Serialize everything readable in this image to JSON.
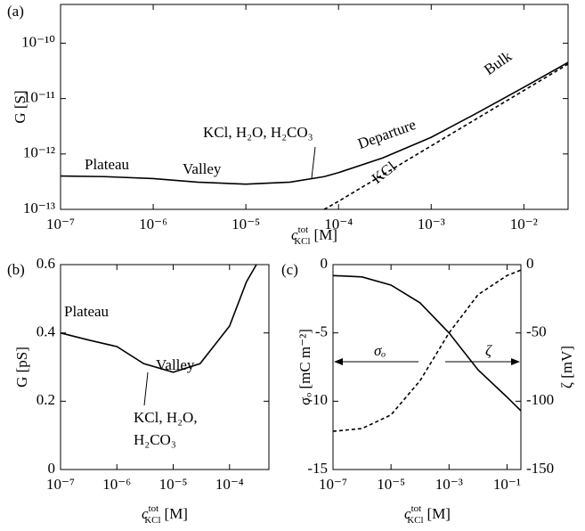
{
  "chart_data": [
    {
      "type": "line",
      "panel_label": "(a)",
      "xlabel": {
        "main": "c",
        "sup": "tot",
        "sub": "KCl",
        "unit": "[M]"
      },
      "ylabel": "G [S]",
      "xscale": "log",
      "yscale": "log",
      "x": [
        1e-07,
        3e-07,
        1e-06,
        3e-06,
        1e-05,
        3e-05,
        7e-05,
        0.0001,
        0.0003,
        0.001,
        0.003,
        0.01,
        0.03
      ],
      "series": [
        {
          "color": "#000000",
          "dash": "solid",
          "values": [
            4e-13,
            3.9e-13,
            3.6e-13,
            3.1e-13,
            2.85e-13,
            3.1e-13,
            3.9e-13,
            4.6e-13,
            8.5e-13,
            2e-12,
            5.3e-12,
            1.6e-11,
            4.5e-11
          ]
        },
        {
          "color": "#000000",
          "dash": "dashed",
          "values": [
            null,
            null,
            null,
            null,
            null,
            null,
            1e-13,
            1.4e-13,
            4.2e-13,
            1.4e-12,
            4.2e-12,
            1.4e-11,
            4.2e-11
          ]
        }
      ],
      "xlim": [
        1e-07,
        0.03
      ],
      "xticks": [
        {
          "value": 1e-07,
          "label": "10⁻⁷"
        },
        {
          "value": 1e-06,
          "label": "10⁻⁶"
        },
        {
          "value": 1e-05,
          "label": "10⁻⁵"
        },
        {
          "value": 0.0001,
          "label": "10⁻⁴"
        },
        {
          "value": 0.001,
          "label": "10⁻³"
        },
        {
          "value": 0.01,
          "label": "10⁻²"
        }
      ],
      "ylim": [
        1e-13,
        5e-10
      ],
      "yticks": [
        {
          "value": 1e-13,
          "label": "10⁻¹³"
        },
        {
          "value": 1e-12,
          "label": "10⁻¹²"
        },
        {
          "value": 1e-11,
          "label": "10⁻¹¹"
        },
        {
          "value": 1e-10,
          "label": "10⁻¹⁰"
        }
      ],
      "annotations": [
        "Plateau",
        "Valley",
        "KCl, H₂O, H₂CO₃",
        "Departure",
        "Bulk",
        "KCl"
      ]
    },
    {
      "type": "line",
      "panel_label": "(b)",
      "xlabel": {
        "main": "c",
        "sup": "tot",
        "sub": "KCl",
        "unit": "[M]"
      },
      "ylabel": "G [pS]",
      "xscale": "log",
      "x": [
        1e-07,
        3e-07,
        1e-06,
        3e-06,
        1e-05,
        3e-05,
        0.0001,
        0.0002,
        0.0003
      ],
      "series": [
        {
          "color": "#000000",
          "dash": "solid",
          "values": [
            0.4,
            0.38,
            0.36,
            0.31,
            0.285,
            0.31,
            0.42,
            0.55,
            0.6
          ]
        }
      ],
      "xlim": [
        1e-07,
        0.0005
      ],
      "xticks": [
        {
          "value": 1e-07,
          "label": "10⁻⁷"
        },
        {
          "value": 1e-06,
          "label": "10⁻⁶"
        },
        {
          "value": 1e-05,
          "label": "10⁻⁵"
        },
        {
          "value": 0.0001,
          "label": "10⁻⁴"
        }
      ],
      "ylim": [
        0,
        0.6
      ],
      "yticks": [
        0,
        0.2,
        0.4,
        0.6
      ],
      "annotations": [
        "Plateau",
        "Valley",
        "KCl, H₂O,",
        "H₂CO₃"
      ]
    },
    {
      "type": "line",
      "panel_label": "(c)",
      "xlabel": {
        "main": "c",
        "sup": "tot",
        "sub": "KCl",
        "unit": "[M]"
      },
      "ylabel": "σₒ [mC m⁻²]",
      "y2label": "ζ [mV]",
      "xscale": "log",
      "x": [
        1e-07,
        1e-06,
        1e-05,
        0.0001,
        0.001,
        0.01,
        0.1,
        0.3
      ],
      "series": [
        {
          "color": "#000000",
          "dash": "solid",
          "values": [
            -0.8,
            -0.9,
            -1.5,
            -2.8,
            -5.0,
            -7.7,
            -9.7,
            -10.7
          ]
        },
        {
          "color": "#000000",
          "dash": "dashed",
          "axis": "y2",
          "values": [
            -122,
            -120,
            -110,
            -85,
            -50,
            -22,
            -8,
            -4
          ]
        }
      ],
      "xlim": [
        1e-07,
        0.3
      ],
      "xticks": [
        {
          "value": 1e-07,
          "label": "10⁻⁷"
        },
        {
          "value": 1e-05,
          "label": "10⁻⁵"
        },
        {
          "value": 0.001,
          "label": "10⁻³"
        },
        {
          "value": 0.1,
          "label": "10⁻¹"
        }
      ],
      "ylim": [
        -15,
        0
      ],
      "yticks": [
        0,
        -5,
        -10,
        -15
      ],
      "y2lim": [
        -150,
        0
      ],
      "y2ticks": [
        0,
        -50,
        -100,
        -150
      ],
      "annotations": [
        "σₒ",
        "ζ"
      ]
    }
  ]
}
